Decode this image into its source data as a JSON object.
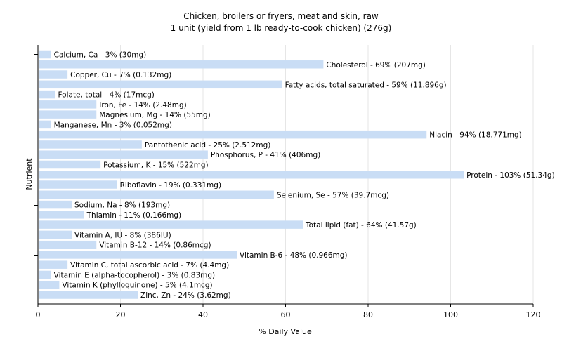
{
  "chart_data": {
    "type": "bar",
    "orientation": "horizontal",
    "title": "Chicken, broilers or fryers, meat and skin, raw",
    "subtitle": "1 unit (yield from 1 lb ready-to-cook chicken) (276g)",
    "xlabel": "% Daily Value",
    "ylabel": "Nutrient",
    "xlim": [
      0,
      120
    ],
    "xticks": [
      0,
      20,
      40,
      60,
      80,
      100,
      120
    ],
    "grid": true,
    "bar_color": "#c9ddf5",
    "categories": [
      "Calcium, Ca",
      "Cholesterol",
      "Copper, Cu",
      "Fatty acids, total saturated",
      "Folate, total",
      "Iron, Fe",
      "Magnesium, Mg",
      "Manganese, Mn",
      "Niacin",
      "Pantothenic acid",
      "Phosphorus, P",
      "Potassium, K",
      "Protein",
      "Riboflavin",
      "Selenium, Se",
      "Sodium, Na",
      "Thiamin",
      "Total lipid (fat)",
      "Vitamin A, IU",
      "Vitamin B-12",
      "Vitamin B-6",
      "Vitamin C, total ascorbic acid",
      "Vitamin E (alpha-tocopherol)",
      "Vitamin K (phylloquinone)",
      "Zinc, Zn"
    ],
    "values": [
      3,
      69,
      7,
      59,
      4,
      14,
      14,
      3,
      94,
      25,
      41,
      15,
      103,
      19,
      57,
      8,
      11,
      64,
      8,
      14,
      48,
      7,
      3,
      5,
      24
    ],
    "labels": [
      "Calcium, Ca - 3% (30mg)",
      "Cholesterol - 69% (207mg)",
      "Copper, Cu - 7% (0.132mg)",
      "Fatty acids, total saturated - 59% (11.896g)",
      "Folate, total - 4% (17mcg)",
      "Iron, Fe - 14% (2.48mg)",
      "Magnesium, Mg - 14% (55mg)",
      "Manganese, Mn - 3% (0.052mg)",
      "Niacin - 94% (18.771mg)",
      "Pantothenic acid - 25% (2.512mg)",
      "Phosphorus, P - 41% (406mg)",
      "Potassium, K - 15% (522mg)",
      "Protein - 103% (51.34g)",
      "Riboflavin - 19% (0.331mg)",
      "Selenium, Se - 57% (39.7mcg)",
      "Sodium, Na - 8% (193mg)",
      "Thiamin - 11% (0.166mg)",
      "Total lipid (fat) - 64% (41.57g)",
      "Vitamin A, IU - 8% (386IU)",
      "Vitamin B-12 - 14% (0.86mcg)",
      "Vitamin B-6 - 48% (0.966mg)",
      "Vitamin C, total ascorbic acid - 7% (4.4mg)",
      "Vitamin E (alpha-tocopherol) - 3% (0.83mg)",
      "Vitamin K (phylloquinone) - 5% (4.1mcg)",
      "Zinc, Zn - 24% (3.62mg)"
    ]
  }
}
